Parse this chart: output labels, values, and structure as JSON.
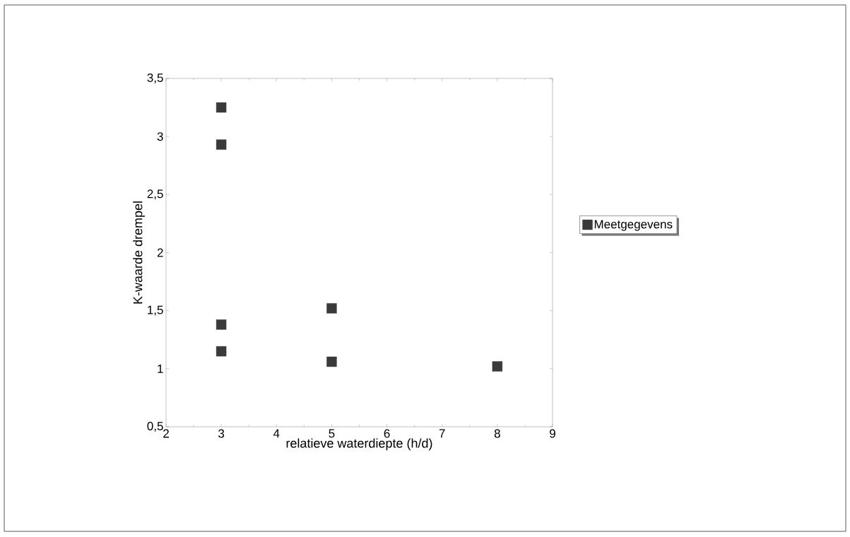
{
  "chart_data": {
    "type": "scatter",
    "xlabel": "relatieve waterdiepte (h/d)",
    "ylabel": "K-waarde drempel",
    "x": [
      3,
      3,
      3,
      3,
      5,
      5,
      8
    ],
    "series": [
      {
        "name": "Meetgegevens",
        "color": "#3a3a3a",
        "values": [
          3.25,
          2.93,
          1.38,
          1.15,
          1.52,
          1.06,
          1.02
        ]
      }
    ],
    "xlim": [
      2,
      9
    ],
    "ylim": [
      0.5,
      3.5
    ],
    "xticks": [
      2,
      3,
      4,
      5,
      6,
      7,
      8,
      9
    ],
    "yticks": [
      {
        "value": 0.5,
        "label": "0,5"
      },
      1,
      {
        "value": 1.5,
        "label": "1,5"
      },
      2,
      {
        "value": 2.5,
        "label": "2,5"
      },
      3,
      {
        "value": 3.5,
        "label": "3,5"
      }
    ],
    "marker": "square",
    "legend": "right",
    "grid": false
  }
}
